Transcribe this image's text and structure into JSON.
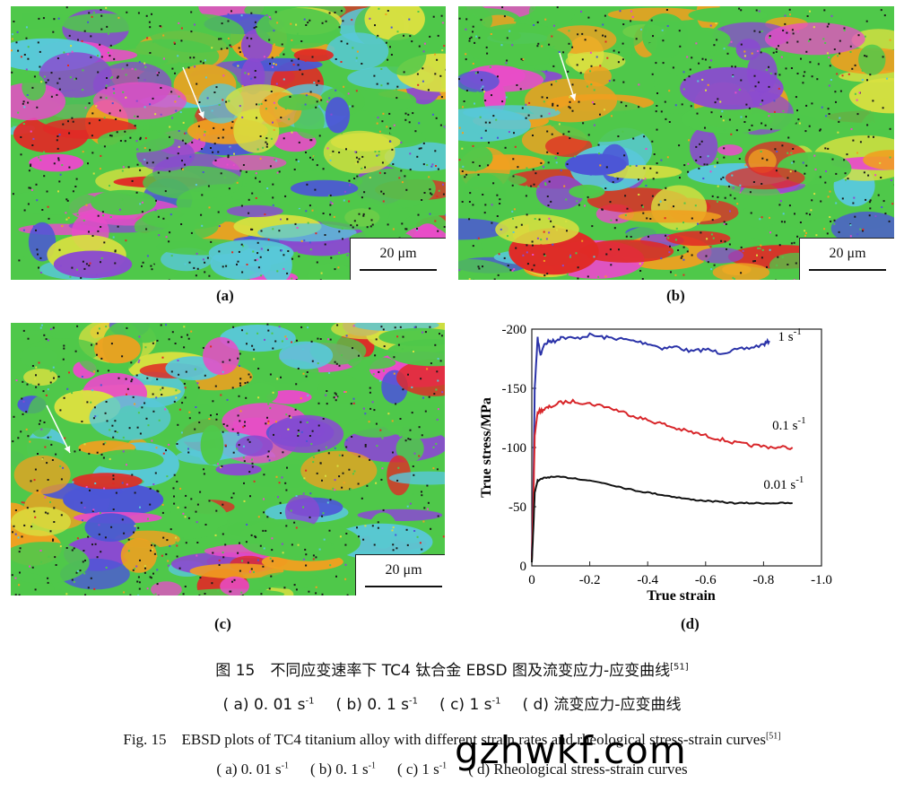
{
  "panels": [
    {
      "id": "a",
      "label": "(a)",
      "scale": "20 μm"
    },
    {
      "id": "b",
      "label": "(b)",
      "scale": "20 μm"
    },
    {
      "id": "c",
      "label": "(c)",
      "scale": "20 μm"
    },
    {
      "id": "d",
      "label": "(d)"
    }
  ],
  "colors": {
    "green": "#4fc84a",
    "blue": "#4c56d6",
    "magenta": "#e84cc8",
    "red": "#e02a26",
    "orange": "#f0a020",
    "yellow": "#d8e040",
    "cyan": "#58c8d8",
    "purple": "#8a4ad0",
    "black": "#1a1a1a"
  },
  "chart_data": {
    "type": "line",
    "xlabel": "True strain",
    "ylabel": "True stress/MPa",
    "xlim": [
      0,
      -1.0
    ],
    "ylim": [
      0,
      -200
    ],
    "xticks": [
      "0",
      "-0.2",
      "-0.4",
      "-0.6",
      "-0.8",
      "-1.0"
    ],
    "yticks": [
      "-200",
      "-150",
      "-100",
      "-50",
      "0"
    ],
    "series": [
      {
        "name": "1 s-1",
        "color": "#2a32a8",
        "x": [
          0,
          -0.005,
          -0.01,
          -0.02,
          -0.03,
          -0.04,
          -0.06,
          -0.08,
          -0.1,
          -0.15,
          -0.2,
          -0.25,
          -0.3,
          -0.35,
          -0.4,
          -0.45,
          -0.5,
          -0.55,
          -0.6,
          -0.65,
          -0.7,
          -0.75,
          -0.8,
          -0.82
        ],
        "y": [
          -8,
          -60,
          -150,
          -192,
          -178,
          -186,
          -190,
          -190,
          -193,
          -192,
          -195,
          -193,
          -192,
          -190,
          -188,
          -184,
          -185,
          -181,
          -183,
          -180,
          -182,
          -184,
          -187,
          -190
        ]
      },
      {
        "name": "0.1 s-1",
        "color": "#d8262a",
        "x": [
          0,
          -0.005,
          -0.01,
          -0.02,
          -0.04,
          -0.06,
          -0.1,
          -0.15,
          -0.2,
          -0.25,
          -0.3,
          -0.35,
          -0.4,
          -0.45,
          -0.5,
          -0.55,
          -0.6,
          -0.65,
          -0.7,
          -0.75,
          -0.8,
          -0.85,
          -0.9
        ],
        "y": [
          -5,
          -50,
          -110,
          -130,
          -132,
          -134,
          -138,
          -139,
          -137,
          -135,
          -131,
          -127,
          -123,
          -120,
          -116,
          -113,
          -110,
          -107,
          -104,
          -102,
          -101,
          -100,
          -100
        ]
      },
      {
        "name": "0.01 s-1",
        "color": "#111111",
        "x": [
          0,
          -0.005,
          -0.01,
          -0.02,
          -0.04,
          -0.06,
          -0.1,
          -0.15,
          -0.2,
          -0.25,
          -0.3,
          -0.35,
          -0.4,
          -0.45,
          -0.5,
          -0.55,
          -0.6,
          -0.65,
          -0.7,
          -0.75,
          -0.8,
          -0.85,
          -0.9
        ],
        "y": [
          -3,
          -30,
          -62,
          -72,
          -74,
          -75,
          -75,
          -74,
          -72,
          -70,
          -67,
          -64,
          -62,
          -60,
          -58,
          -56,
          -55,
          -54,
          -53,
          -53,
          -53,
          -53,
          -53
        ]
      }
    ],
    "annotations": [
      {
        "text": "1 s",
        "sup": "-1",
        "x": -0.85,
        "y": -190
      },
      {
        "text": "0.1 s",
        "sup": "-1",
        "x": -0.83,
        "y": -115
      },
      {
        "text": "0.01 s",
        "sup": "-1",
        "x": -0.8,
        "y": -65
      }
    ]
  },
  "caption": {
    "cn_title": "图 15　不同应变速率下 TC4 钛合金 EBSD 图及流变应力-应变曲线",
    "cn_ref": "[51]",
    "cn_subs": [
      {
        "text": "( a)  0. 01  s",
        "sup": "-1"
      },
      {
        "text": "( b)  0. 1  s",
        "sup": "-1"
      },
      {
        "text": "( c)  1  s",
        "sup": "-1"
      },
      {
        "text": "( d)  流变应力-应变曲线",
        "sup": ""
      }
    ],
    "en_title": "Fig. 15　EBSD plots of TC4 titanium alloy with different strain rates and rheological stress-strain curves",
    "en_ref": "[51]",
    "en_subs": [
      {
        "text": "( a)  0. 01  s",
        "sup": "-1"
      },
      {
        "text": "( b)  0. 1  s",
        "sup": "-1"
      },
      {
        "text": "( c)  1  s",
        "sup": "-1"
      },
      {
        "text": "( d)  Rheological stress-strain curves",
        "sup": ""
      }
    ]
  },
  "watermark": "gzhwkf.com"
}
